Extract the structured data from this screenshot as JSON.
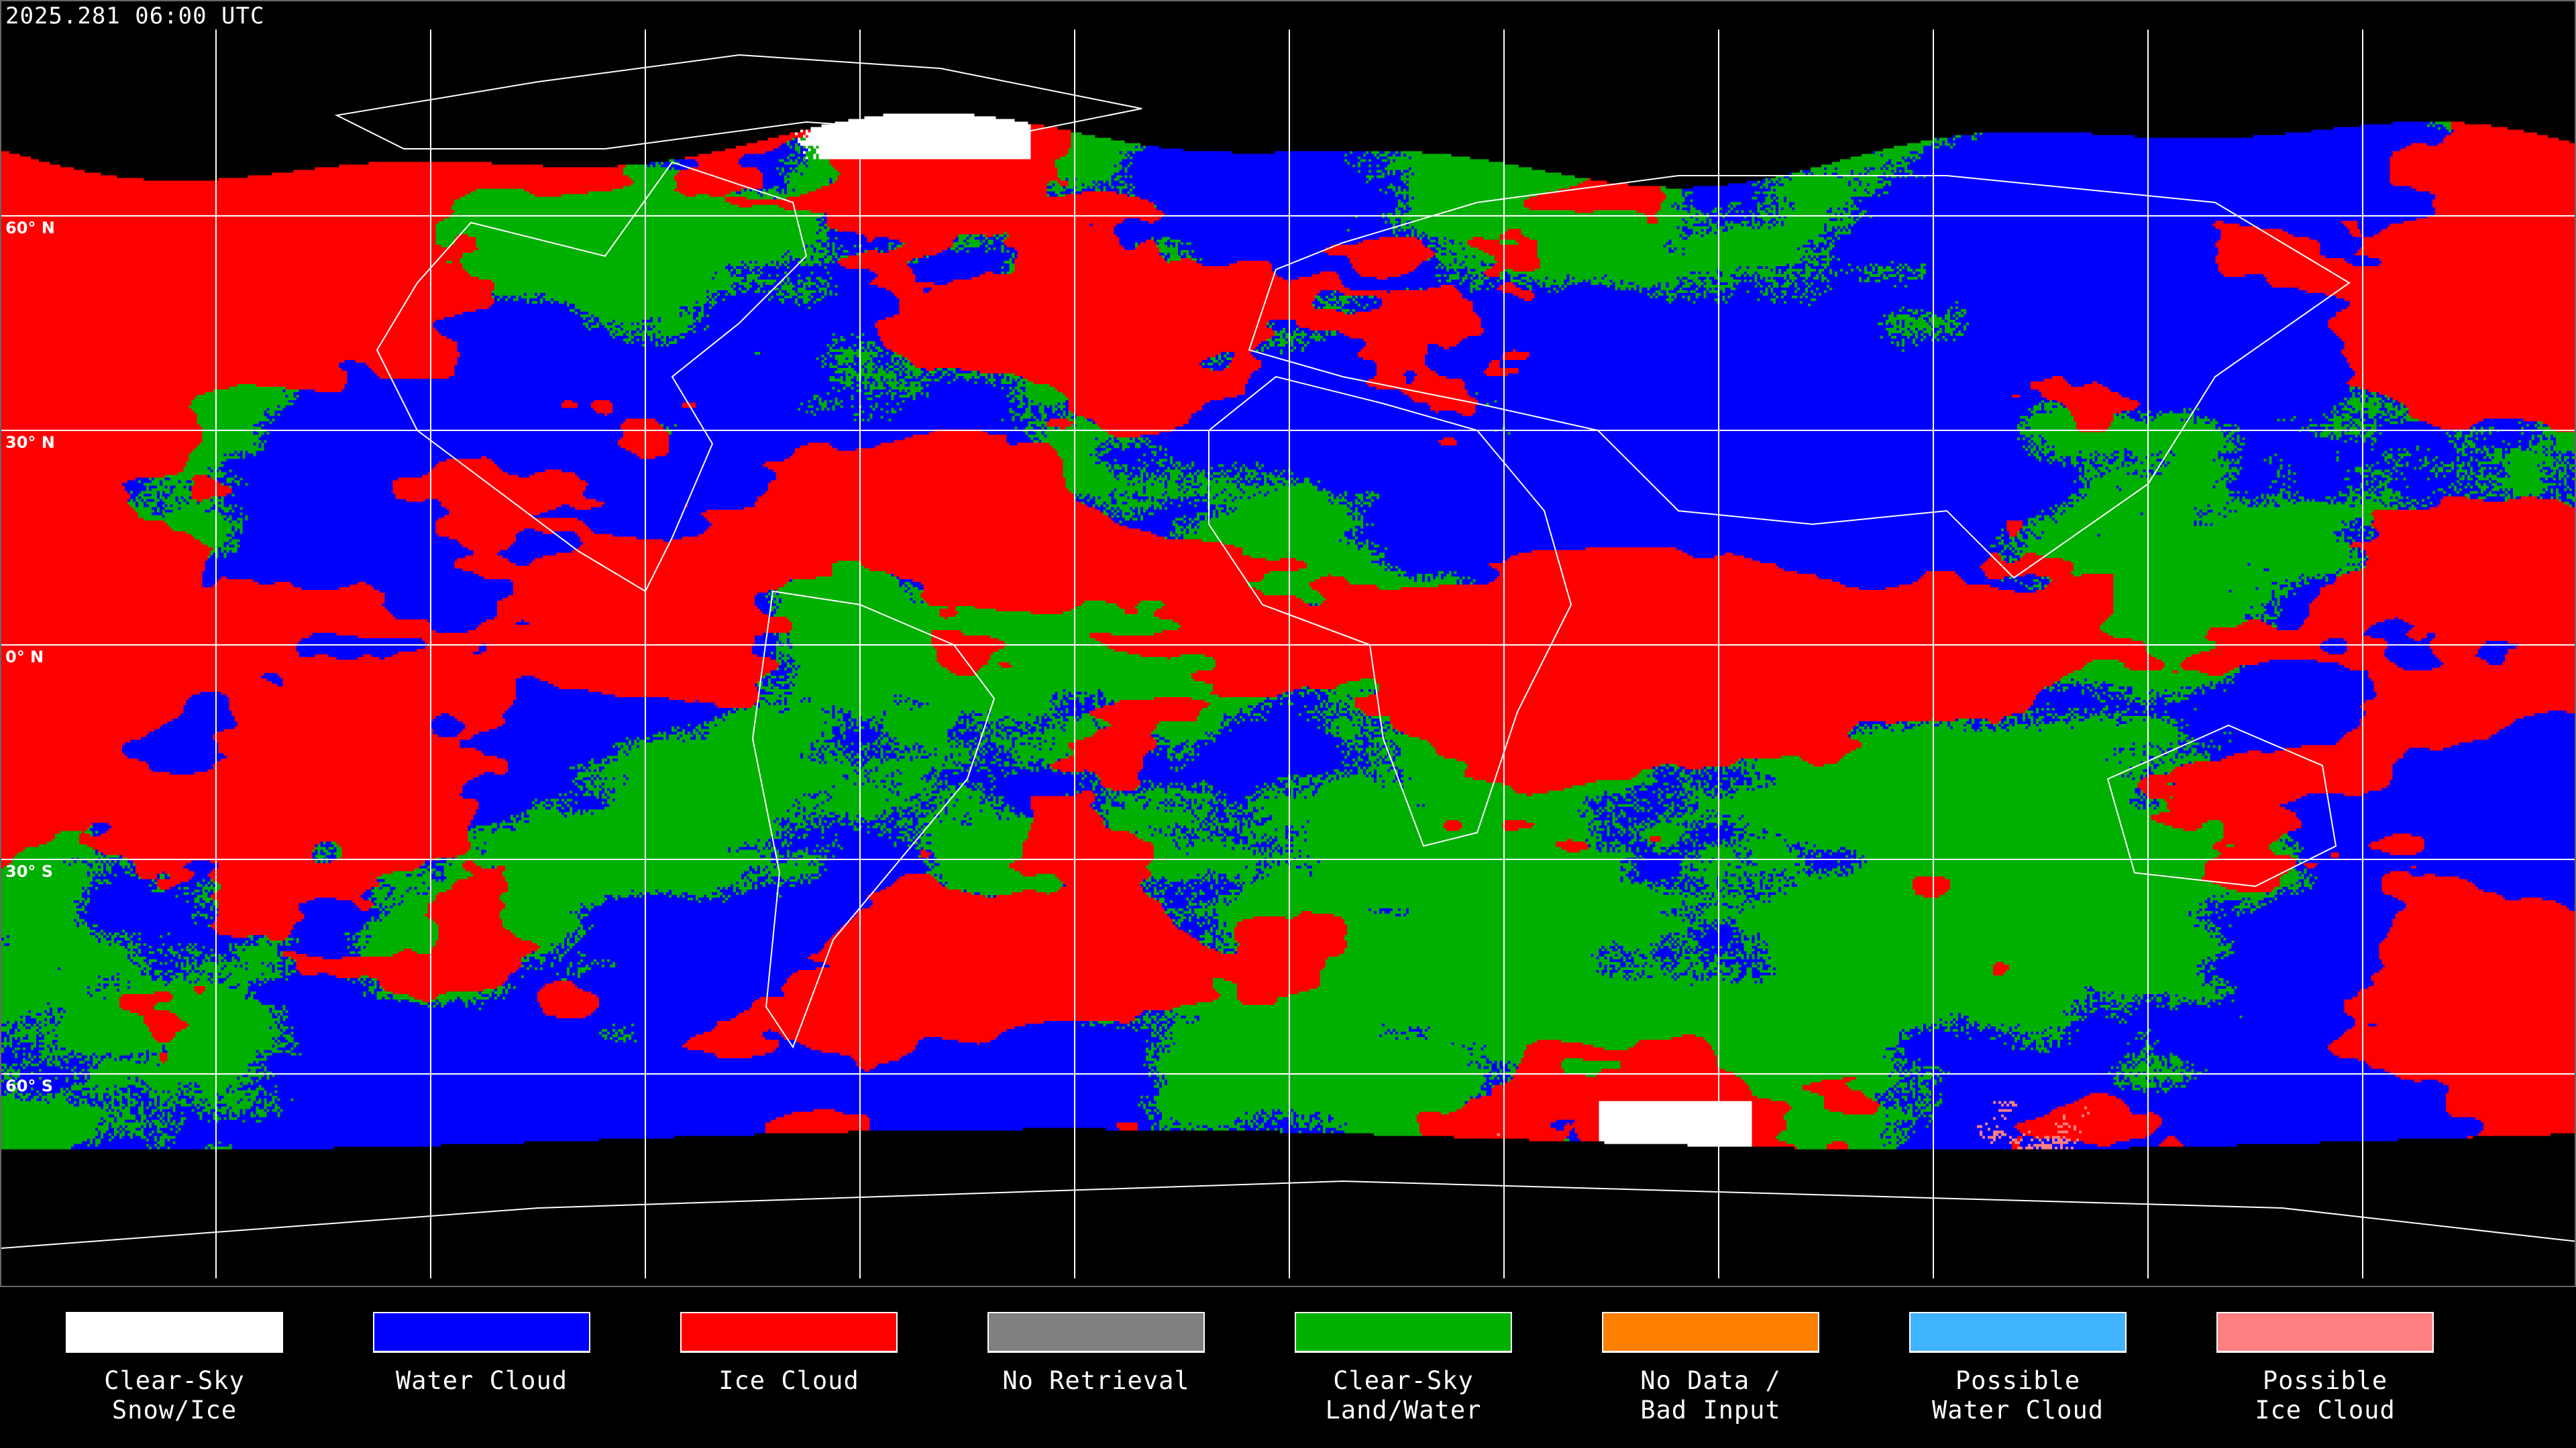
{
  "timestamp": "2025.281 06:00 UTC",
  "map": {
    "projection": "equirectangular",
    "longitude_gridlines_deg": [
      -150,
      -120,
      -90,
      -60,
      -30,
      0,
      30,
      60,
      90,
      120,
      150
    ],
    "latitude_gridlines": [
      {
        "lat": 60,
        "label": "60° N"
      },
      {
        "lat": 30,
        "label": "30° N"
      },
      {
        "lat": 0,
        "label": "0° N"
      },
      {
        "lat": -30,
        "label": "30° S"
      },
      {
        "lat": -60,
        "label": "60° S"
      }
    ],
    "gridline_color": "#ffffff",
    "coastline_color": "#ffffff"
  },
  "legend": [
    {
      "line1": "Clear-Sky",
      "line2": "Snow/Ice",
      "color": "#ffffff"
    },
    {
      "line1": "Water Cloud",
      "line2": "",
      "color": "#0000ff"
    },
    {
      "line1": "Ice Cloud",
      "line2": "",
      "color": "#ff0000"
    },
    {
      "line1": "No Retrieval",
      "line2": "",
      "color": "#808080"
    },
    {
      "line1": "Clear-Sky",
      "line2": "Land/Water",
      "color": "#00b000"
    },
    {
      "line1": "No Data /",
      "line2": "Bad Input",
      "color": "#ff8000"
    },
    {
      "line1": "Possible",
      "line2": "Water Cloud",
      "color": "#40b4ff"
    },
    {
      "line1": "Possible",
      "line2": "Ice Cloud",
      "color": "#ff8080"
    }
  ]
}
